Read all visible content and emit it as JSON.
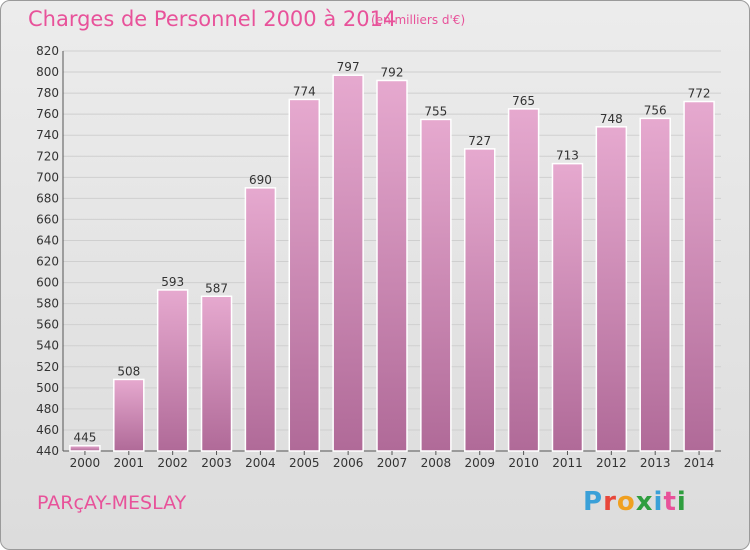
{
  "header": {
    "title": "Charges de Personnel 2000 à 2014",
    "unit": "(en milliers d'€)"
  },
  "footer": {
    "commune": "PARçAY-MESLAY",
    "logo_letters": [
      "P",
      "r",
      "o",
      "x",
      "i",
      "t",
      "i"
    ],
    "logo_colors": [
      "#3aa0d8",
      "#e8473a",
      "#f0a020",
      "#2f9e3f",
      "#3aa0d8",
      "#e8529a",
      "#2f9e3f"
    ]
  },
  "colors": {
    "bar_top": "#e6a9cf",
    "bar_bottom": "#b06a98",
    "text": "#333333",
    "grid": "#cfcfcf",
    "accent": "#e8529a"
  },
  "chart_data": {
    "type": "bar",
    "categories": [
      "2000",
      "2001",
      "2002",
      "2003",
      "2004",
      "2005",
      "2006",
      "2007",
      "2008",
      "2009",
      "2010",
      "2011",
      "2012",
      "2013",
      "2014"
    ],
    "values": [
      445,
      508,
      593,
      587,
      690,
      774,
      797,
      792,
      755,
      727,
      765,
      713,
      748,
      756,
      772
    ],
    "title": "Charges de Personnel 2000 à 2014",
    "xlabel": "",
    "ylabel": "",
    "ylim": [
      440,
      820
    ],
    "ytick_step": 20,
    "grid": true,
    "legend": "none"
  }
}
